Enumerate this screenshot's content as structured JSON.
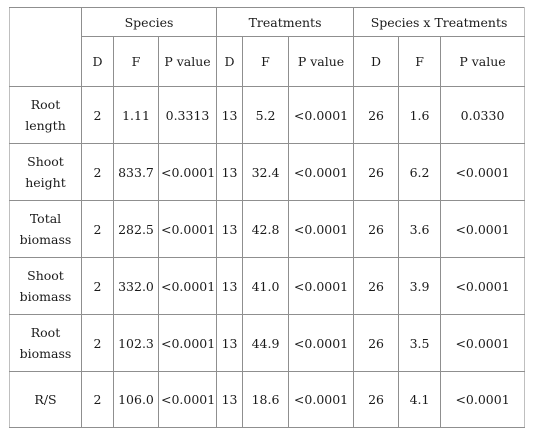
{
  "groups": [
    "Species",
    "Treatments",
    "Species x Treatments"
  ],
  "subheaders": [
    "D",
    "F",
    "P value",
    "D",
    "F",
    "P value",
    "D",
    "F",
    "P value"
  ],
  "rows": [
    {
      "label": [
        "Root",
        "length"
      ],
      "cells": [
        "2",
        "1.11",
        "0.3313",
        "13",
        "5.2",
        "<0.0001",
        "26",
        "1.6",
        "0.0330"
      ]
    },
    {
      "label": [
        "Shoot",
        "height"
      ],
      "cells": [
        "2",
        "833.7",
        "<0.0001",
        "13",
        "32.4",
        "<0.0001",
        "26",
        "6.2",
        "<0.0001"
      ]
    },
    {
      "label": [
        "Total",
        "biomass"
      ],
      "cells": [
        "2",
        "282.5",
        "<0.0001",
        "13",
        "42.8",
        "<0.0001",
        "26",
        "3.6",
        "<0.0001"
      ]
    },
    {
      "label": [
        "Shoot",
        "biomass"
      ],
      "cells": [
        "2",
        "332.0",
        "<0.0001",
        "13",
        "41.0",
        "<0.0001",
        "26",
        "3.9",
        "<0.0001"
      ]
    },
    {
      "label": [
        "Root",
        "biomass"
      ],
      "cells": [
        "2",
        "102.3",
        "<0.0001",
        "13",
        "44.9",
        "<0.0001",
        "26",
        "3.5",
        "<0.0001"
      ]
    },
    {
      "label": [
        "R/S"
      ],
      "cells": [
        "2",
        "106.0",
        "<0.0001",
        "13",
        "18.6",
        "<0.0001",
        "26",
        "4.1",
        "<0.0001"
      ]
    }
  ]
}
